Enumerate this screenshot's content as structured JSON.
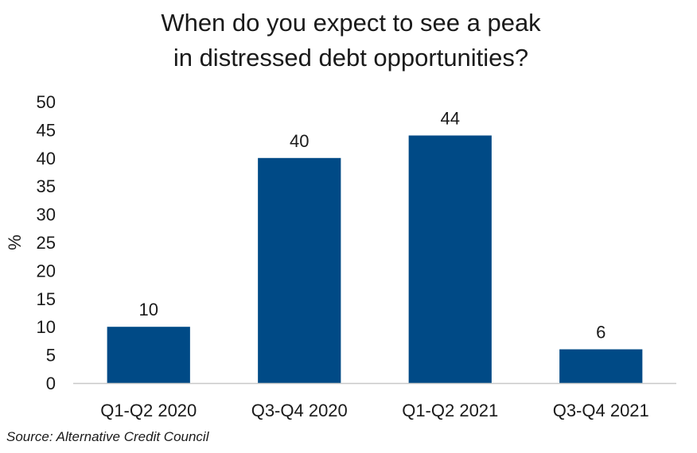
{
  "chart_data": {
    "type": "bar",
    "title_lines": [
      "When do you expect to see a peak",
      "in distressed debt opportunities?"
    ],
    "categories": [
      "Q1-Q2 2020",
      "Q3-Q4 2020",
      "Q1-Q2 2021",
      "Q3-Q4 2021"
    ],
    "values": [
      10,
      40,
      44,
      6
    ],
    "data_labels": [
      "10",
      "40",
      "44",
      "6"
    ],
    "ylabel": "%",
    "xlabel": "",
    "ylim": [
      0,
      50
    ],
    "yticks": [
      "0",
      "5",
      "10",
      "15",
      "20",
      "25",
      "30",
      "35",
      "40",
      "45",
      "50"
    ],
    "ytick_values": [
      0,
      5,
      10,
      15,
      20,
      25,
      30,
      35,
      40,
      45,
      50
    ],
    "grid": false,
    "legend": "none",
    "bar_color": "#004a86",
    "axis_color": "#c8c8c8"
  },
  "source": "Source: Alternative Credit Council"
}
